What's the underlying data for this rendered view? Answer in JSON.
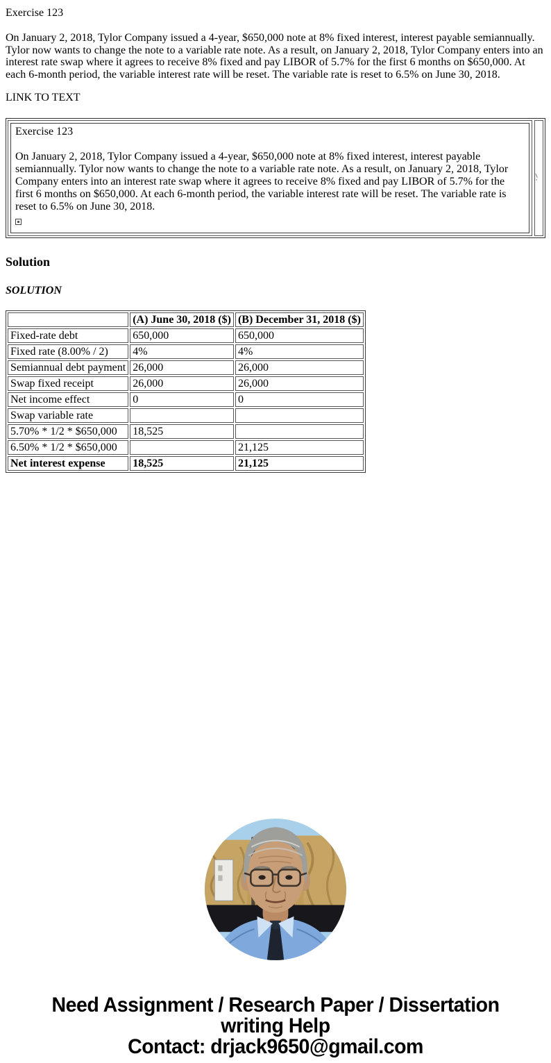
{
  "page": {
    "exercise_title": "Exercise 123",
    "intro_paragraph": "On January 2, 2018, Tylor Company issued a 4-year, $650,000 note at 8% fixed interest, interest payable semiannually. Tylor now wants to change the note to a variable rate note. As a result, on January 2, 2018, Tylor Company enters into an interest rate swap where it agrees to receive 8% fixed and pay LIBOR of 5.7% for the first 6 months on $650,000. At each 6-month period, the variable interest rate will be reset. The variable rate is reset to 6.5% on June 30, 2018.",
    "link_to_text": "LINK TO TEXT"
  },
  "embedded_box": {
    "title": "Exercise 123",
    "body": "On January 2, 2018, Tylor Company issued a 4-year, $650,000 note at 8% fixed interest, interest payable semiannually. Tylor now wants to change the note to a variable rate note. As a result, on January 2, 2018, Tylor Company enters into an interest rate swap where it agrees to receive 8% fixed and pay LIBOR of 5.7% for the first 6 months on $650,000. At each 6-month period, the variable interest rate will be reset. The variable rate is reset to 6.5% on June 30, 2018.",
    "side_marks": "\\ '"
  },
  "solution": {
    "heading": "Solution",
    "subheading": "SOLUTION"
  },
  "table": {
    "headers": [
      "",
      "(A) June 30, 2018 ($)",
      "(B) December 31, 2018 ($)"
    ],
    "rows": [
      {
        "label": "Fixed-rate debt",
        "a": "650,000",
        "b": "650,000",
        "bold": false
      },
      {
        "label": "Fixed rate (8.00% / 2)",
        "a": "4%",
        "b": "4%",
        "bold": false
      },
      {
        "label": "Semiannual debt payment",
        "a": "26,000",
        "b": "26,000",
        "bold": false
      },
      {
        "label": "Swap fixed receipt",
        "a": "26,000",
        "b": "26,000",
        "bold": false
      },
      {
        "label": "Net income effect",
        "a": "0",
        "b": "0",
        "bold": false
      },
      {
        "label": "Swap variable rate",
        "a": "",
        "b": "",
        "bold": false
      },
      {
        "label": "5.70% * 1/2 * $650,000",
        "a": "18,525",
        "b": "",
        "bold": false
      },
      {
        "label": "6.50% * 1/2 * $650,000",
        "a": "",
        "b": "21,125",
        "bold": false
      },
      {
        "label": "Net interest expense",
        "a": "18,525",
        "b": "21,125",
        "bold": true
      }
    ]
  },
  "footer": {
    "line1": "Need Assignment / Research Paper / Dissertation",
    "line2": "writing Help",
    "contact": "Contact: drjack9650@gmail.com"
  },
  "portrait": {
    "description": "elderly man with gray hair and glasses wearing light blue shirt",
    "colors": {
      "sky": "#a9d0ea",
      "panel": "#c6a463",
      "panel_dark": "#4a4336",
      "band": "#17171c",
      "shirt": "#7fa9dc",
      "skin": "#c79e78",
      "hair": "#9e9e9a",
      "tie": "#1d2430"
    }
  },
  "colors": {
    "text": "#000000",
    "frame_border": "#3a3a3a"
  }
}
